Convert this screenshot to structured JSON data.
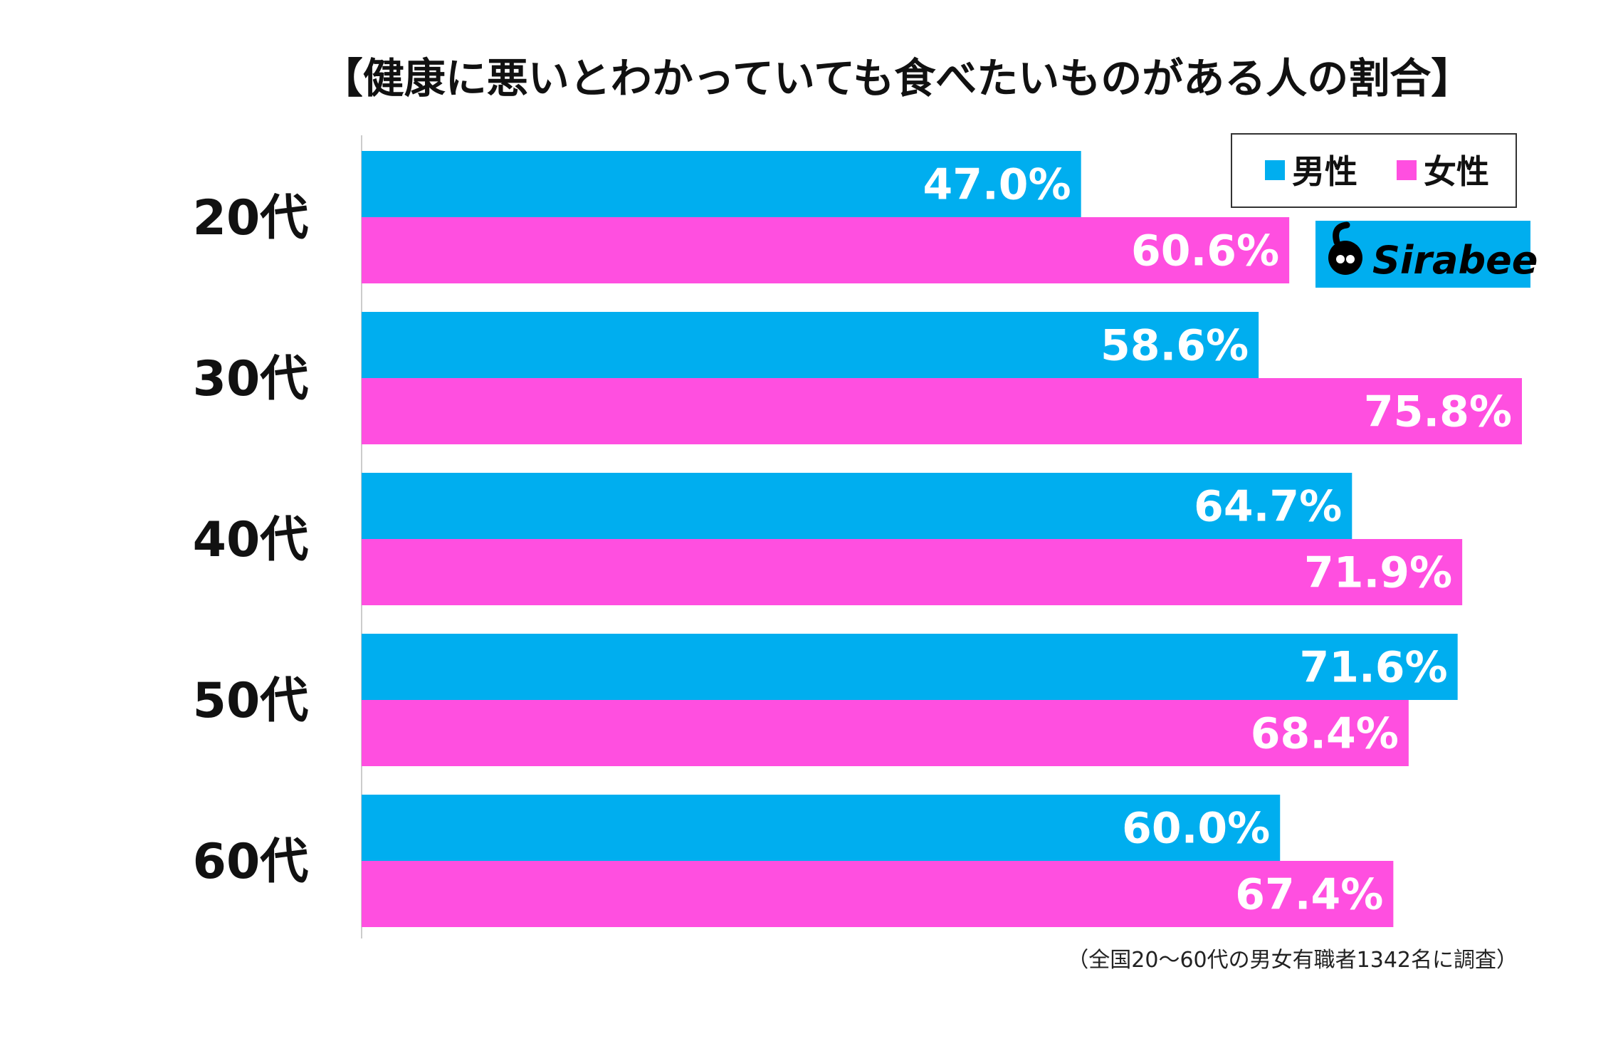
{
  "chart_data": {
    "type": "bar",
    "orientation": "horizontal",
    "title": "【健康に悪いとわかっていても食べたいものがある人の割合】",
    "categories": [
      "20代",
      "30代",
      "40代",
      "50代",
      "60代"
    ],
    "series": [
      {
        "name": "男性",
        "color": "#00AEEF",
        "values": [
          47.0,
          58.6,
          64.7,
          71.6,
          60.0
        ]
      },
      {
        "name": "女性",
        "color": "#FF4FE0",
        "values": [
          60.6,
          75.8,
          71.9,
          68.4,
          67.4
        ]
      }
    ],
    "value_labels": [
      [
        "47.0%",
        "58.6%",
        "64.7%",
        "71.6%",
        "60.0%"
      ],
      [
        "60.6%",
        "75.8%",
        "71.9%",
        "68.4%",
        "67.4%"
      ]
    ],
    "xlim": [
      0,
      75.8
    ],
    "unit": "%",
    "grid": false,
    "legend_position": "top-right",
    "note": "（全国20〜60代の男女有職者1342名に調査）"
  },
  "logo": {
    "text": "Sirabee",
    "color": "#00AEEF",
    "icon": "sirabee-logo-icon"
  }
}
